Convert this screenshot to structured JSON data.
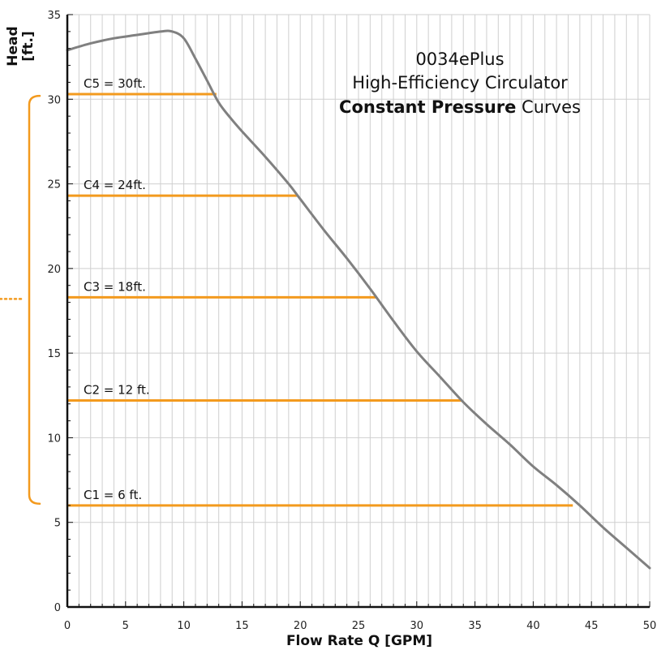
{
  "chart_data": {
    "type": "line",
    "title_lines": [
      "0034ePlus",
      "High-Efficiency Circulator"
    ],
    "title_bold_part": "Constant Pressure",
    "title_rest_part": " Curves",
    "xlabel": "Flow Rate Q [GPM]",
    "ylabel_lines": [
      "Head",
      "[ft.]"
    ],
    "xlim": [
      0,
      50
    ],
    "ylim": [
      0,
      35
    ],
    "xticks": [
      0,
      5,
      10,
      15,
      20,
      25,
      30,
      35,
      40,
      45,
      50
    ],
    "yticks": [
      0,
      5,
      10,
      15,
      20,
      25,
      30,
      35
    ],
    "grid": true,
    "series": [
      {
        "name": "",
        "type": "pump-curve",
        "color": "#808080",
        "points": [
          [
            0,
            32.9
          ],
          [
            2,
            33.3
          ],
          [
            4,
            33.6
          ],
          [
            6,
            33.8
          ],
          [
            8,
            34.0
          ],
          [
            9,
            34.0
          ],
          [
            10,
            33.6
          ],
          [
            11,
            32.4
          ],
          [
            12,
            31.1
          ],
          [
            13,
            29.8
          ],
          [
            14,
            28.9
          ],
          [
            15,
            28.1
          ],
          [
            17,
            26.6
          ],
          [
            19,
            25.0
          ],
          [
            20,
            24.1
          ],
          [
            22,
            22.3
          ],
          [
            24,
            20.6
          ],
          [
            26,
            18.8
          ],
          [
            28,
            16.9
          ],
          [
            30,
            15.1
          ],
          [
            32,
            13.6
          ],
          [
            34,
            12.1
          ],
          [
            36,
            10.8
          ],
          [
            38,
            9.6
          ],
          [
            40,
            8.3
          ],
          [
            42,
            7.2
          ],
          [
            44,
            6.0
          ],
          [
            46,
            4.7
          ],
          [
            48,
            3.5
          ],
          [
            50,
            2.3
          ]
        ]
      }
    ],
    "constant_pressure_curves": [
      {
        "label": "C5 = 30ft.",
        "head": 30.3,
        "x_end": 12.8,
        "color": "#f39a1e"
      },
      {
        "label": "C4 = 24ft.",
        "head": 24.3,
        "x_end": 19.7,
        "color": "#f39a1e"
      },
      {
        "label": "C3 = 18ft.",
        "head": 18.3,
        "x_end": 26.6,
        "color": "#f39a1e"
      },
      {
        "label": "C2 = 12 ft.",
        "head": 12.2,
        "x_end": 33.9,
        "color": "#f39a1e"
      },
      {
        "label": "C1 = 6 ft.",
        "head": 6.0,
        "x_end": 43.4,
        "color": "#f39a1e"
      }
    ],
    "colors": {
      "grid": "#cfcfcf",
      "axis": "#111111",
      "accent": "#f39a1e",
      "curve": "#808080"
    }
  }
}
